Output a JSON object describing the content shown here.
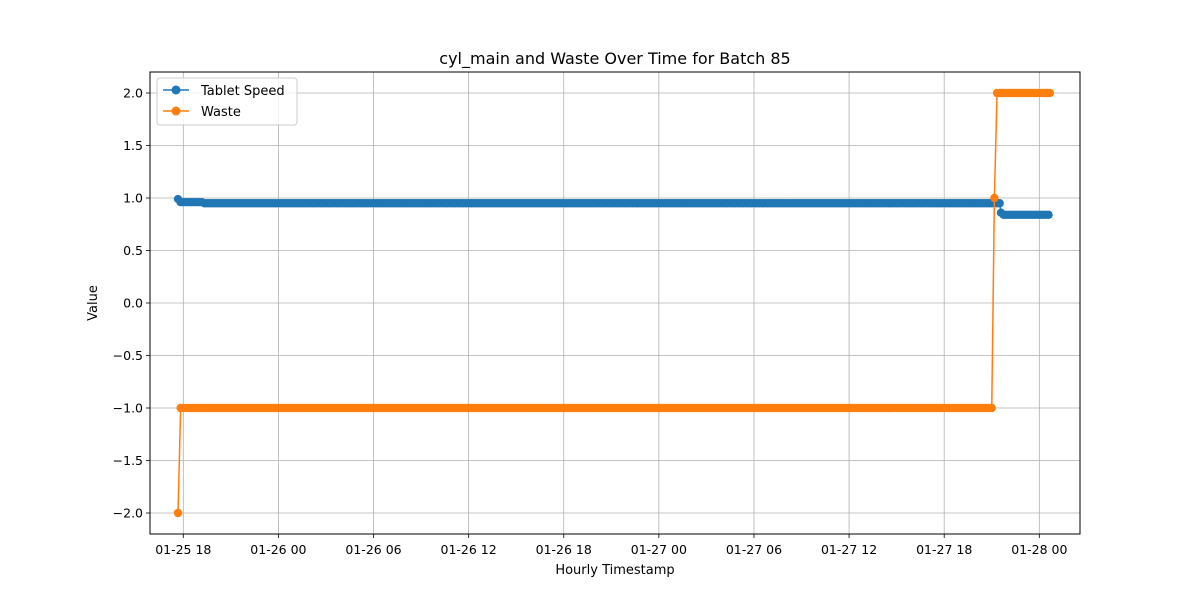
{
  "chart_data": {
    "type": "line",
    "title": "cyl_main and Waste Over Time for Batch 85",
    "xlabel": "Hourly Timestamp",
    "ylabel": "Value",
    "xlim": [
      "2019-01-25 15:54",
      "2019-01-28 02:34"
    ],
    "ylim": [
      -2.2,
      2.2
    ],
    "grid": true,
    "legend_position": "top-left",
    "x_ticks": [
      {
        "t": "2019-01-25 18:00",
        "label": "01-25 18"
      },
      {
        "t": "2019-01-26 00:00",
        "label": "01-26 00"
      },
      {
        "t": "2019-01-26 06:00",
        "label": "01-26 06"
      },
      {
        "t": "2019-01-26 12:00",
        "label": "01-26 12"
      },
      {
        "t": "2019-01-26 18:00",
        "label": "01-26 18"
      },
      {
        "t": "2019-01-27 00:00",
        "label": "01-27 00"
      },
      {
        "t": "2019-01-27 06:00",
        "label": "01-27 06"
      },
      {
        "t": "2019-01-27 12:00",
        "label": "01-27 12"
      },
      {
        "t": "2019-01-27 18:00",
        "label": "01-27 18"
      },
      {
        "t": "2019-01-28 00:00",
        "label": "01-28 00"
      }
    ],
    "y_ticks": [
      {
        "v": 2.0,
        "label": "2.0"
      },
      {
        "v": 1.5,
        "label": "1.5"
      },
      {
        "v": 1.0,
        "label": "1.0"
      },
      {
        "v": 0.5,
        "label": "0.5"
      },
      {
        "v": 0.0,
        "label": "0.0"
      },
      {
        "v": -0.5,
        "label": "−0.5"
      },
      {
        "v": -1.0,
        "label": "−1.0"
      },
      {
        "v": -1.5,
        "label": "−1.5"
      },
      {
        "v": -2.0,
        "label": "−2.0"
      }
    ],
    "series": [
      {
        "name": "Tablet Speed",
        "color": "#1f77b4",
        "segments": [
          {
            "start": "2019-01-25 17:40",
            "end": "2019-01-25 17:40",
            "value": 0.99
          },
          {
            "start": "2019-01-25 17:50",
            "end": "2019-01-25 19:10",
            "value": 0.96
          },
          {
            "start": "2019-01-25 19:20",
            "end": "2019-01-27 21:30",
            "value": 0.95
          },
          {
            "start": "2019-01-27 21:35",
            "end": "2019-01-27 21:35",
            "value": 0.86
          },
          {
            "start": "2019-01-27 21:45",
            "end": "2019-01-28 00:40",
            "value": 0.84
          }
        ]
      },
      {
        "name": "Waste",
        "color": "#ff7f0e",
        "segments": [
          {
            "start": "2019-01-25 17:40",
            "end": "2019-01-25 17:40",
            "value": -2.0
          },
          {
            "start": "2019-01-25 17:50",
            "end": "2019-01-27 21:00",
            "value": -1.0
          },
          {
            "start": "2019-01-27 21:10",
            "end": "2019-01-27 21:10",
            "value": 1.0
          },
          {
            "start": "2019-01-27 21:20",
            "end": "2019-01-28 00:40",
            "value": 2.0
          }
        ]
      }
    ]
  }
}
